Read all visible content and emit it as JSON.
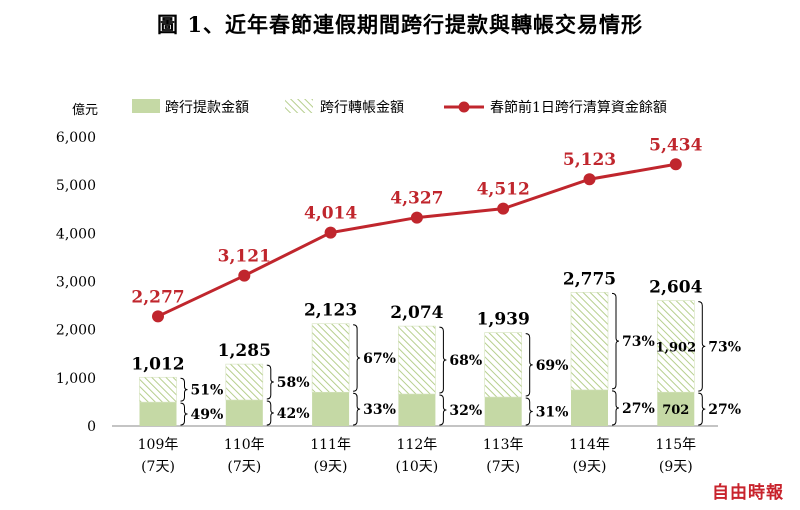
{
  "title": "圖 1、近年春節連假期間跨行提款與轉帳交易情形",
  "watermark": "自由時報",
  "colors": {
    "withdraw": "#c5d9a5",
    "transfer_hatch": "#b7cf8e",
    "line": "#c0262d",
    "axis": "#888888"
  },
  "chart_data": {
    "type": "bar",
    "stacked": true,
    "ylabel": "億元",
    "ylim": [
      0,
      6000
    ],
    "yticks": [
      "0",
      "1,000",
      "2,000",
      "3,000",
      "4,000",
      "5,000",
      "6,000"
    ],
    "legend_position": "top",
    "categories": [
      {
        "year": "109年",
        "days": "(7天)"
      },
      {
        "year": "110年",
        "days": "(7天)"
      },
      {
        "year": "111年",
        "days": "(9天)"
      },
      {
        "year": "112年",
        "days": "(10天)"
      },
      {
        "year": "113年",
        "days": "(7天)"
      },
      {
        "year": "114年",
        "days": "(9天)"
      },
      {
        "year": "115年",
        "days": "(9天)"
      }
    ],
    "series": [
      {
        "name": "跨行提款金額",
        "type": "bar",
        "values": [
          496,
          540,
          701,
          664,
          601,
          749,
          702
        ]
      },
      {
        "name": "跨行轉帳金額",
        "type": "bar",
        "values": [
          516,
          745,
          1422,
          1410,
          1338,
          2026,
          1902
        ]
      },
      {
        "name": "春節前1日跨行清算資金餘額",
        "type": "line",
        "values": [
          2277,
          3121,
          4014,
          4327,
          4512,
          5123,
          5434
        ]
      }
    ],
    "bar_totals": [
      "1,012",
      "1,285",
      "2,123",
      "2,074",
      "1,939",
      "2,775",
      "2,604"
    ],
    "line_labels": [
      "2,277",
      "3,121",
      "4,014",
      "4,327",
      "4,512",
      "5,123",
      "5,434"
    ],
    "transfer_pct": [
      "51%",
      "58%",
      "67%",
      "68%",
      "69%",
      "73%",
      "73%"
    ],
    "withdraw_pct": [
      "49%",
      "42%",
      "33%",
      "32%",
      "31%",
      "27%",
      "27%"
    ],
    "inner_labels": [
      {
        "index": 6,
        "series": "transfer",
        "text": "1,902"
      },
      {
        "index": 6,
        "series": "withdraw",
        "text": "702"
      }
    ]
  }
}
